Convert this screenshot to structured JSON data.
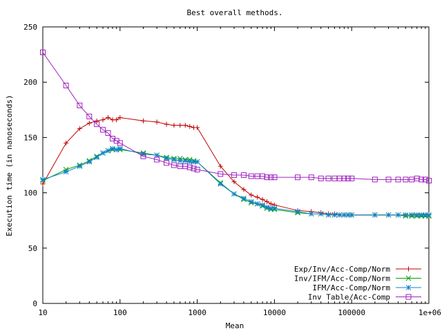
{
  "chart_data": {
    "type": "line",
    "title": "Best overall methods.",
    "xlabel": "Mean",
    "ylabel": "Execution time (in nanoseconds)",
    "xscale": "log",
    "xlim": [
      10,
      1000000
    ],
    "ylim": [
      0,
      250
    ],
    "x_ticks": [
      {
        "value": 10,
        "label": "10"
      },
      {
        "value": 100,
        "label": "100"
      },
      {
        "value": 1000,
        "label": "1000"
      },
      {
        "value": 10000,
        "label": "10000"
      },
      {
        "value": 100000,
        "label": "100000"
      },
      {
        "value": 1000000,
        "label": "1e+06"
      }
    ],
    "y_ticks": [
      {
        "value": 0,
        "label": "0"
      },
      {
        "value": 50,
        "label": "50"
      },
      {
        "value": 100,
        "label": "100"
      },
      {
        "value": 150,
        "label": "150"
      },
      {
        "value": 200,
        "label": "200"
      },
      {
        "value": 250,
        "label": "250"
      }
    ],
    "grid": false,
    "legend_position": "bottom-right",
    "series": [
      {
        "name": "Exp/Inv/Acc-Comp/Norm",
        "color": "#c00000",
        "marker": "plus",
        "points": [
          [
            10,
            108
          ],
          [
            20,
            145
          ],
          [
            30,
            158
          ],
          [
            40,
            163
          ],
          [
            50,
            165
          ],
          [
            60,
            166
          ],
          [
            70,
            168
          ],
          [
            80,
            166
          ],
          [
            90,
            166
          ],
          [
            100,
            168
          ],
          [
            200,
            165
          ],
          [
            300,
            164
          ],
          [
            400,
            162
          ],
          [
            500,
            161
          ],
          [
            600,
            161
          ],
          [
            700,
            161
          ],
          [
            800,
            160
          ],
          [
            900,
            159
          ],
          [
            1000,
            159
          ],
          [
            2000,
            124
          ],
          [
            3000,
            110
          ],
          [
            4000,
            103
          ],
          [
            5000,
            98
          ],
          [
            6000,
            96
          ],
          [
            7000,
            94
          ],
          [
            8000,
            92
          ],
          [
            9000,
            90
          ],
          [
            10000,
            89
          ],
          [
            20000,
            84
          ],
          [
            30000,
            83
          ],
          [
            40000,
            82
          ],
          [
            50000,
            81
          ],
          [
            60000,
            81
          ],
          [
            70000,
            80
          ],
          [
            80000,
            80
          ],
          [
            90000,
            80
          ],
          [
            100000,
            80
          ],
          [
            200000,
            80
          ],
          [
            300000,
            80
          ],
          [
            400000,
            80
          ],
          [
            500000,
            80
          ],
          [
            600000,
            80
          ],
          [
            700000,
            80
          ],
          [
            800000,
            80
          ],
          [
            900000,
            80
          ],
          [
            1000000,
            80
          ]
        ]
      },
      {
        "name": "Inv/IFM/Acc-Comp/Norm",
        "color": "#00a000",
        "marker": "cross",
        "points": [
          [
            10,
            111
          ],
          [
            20,
            121
          ],
          [
            30,
            125
          ],
          [
            40,
            129
          ],
          [
            50,
            133
          ],
          [
            60,
            136
          ],
          [
            70,
            138
          ],
          [
            80,
            139
          ],
          [
            90,
            139
          ],
          [
            100,
            139
          ],
          [
            200,
            136
          ],
          [
            300,
            134
          ],
          [
            400,
            132
          ],
          [
            500,
            131
          ],
          [
            600,
            131
          ],
          [
            700,
            130
          ],
          [
            800,
            130
          ],
          [
            900,
            129
          ],
          [
            1000,
            128
          ],
          [
            2000,
            109
          ],
          [
            3000,
            99
          ],
          [
            4000,
            94
          ],
          [
            5000,
            91
          ],
          [
            6000,
            90
          ],
          [
            7000,
            88
          ],
          [
            8000,
            86
          ],
          [
            9000,
            85
          ],
          [
            10000,
            85
          ],
          [
            20000,
            82
          ],
          [
            30000,
            81
          ],
          [
            40000,
            81
          ],
          [
            50000,
            80
          ],
          [
            60000,
            80
          ],
          [
            70000,
            80
          ],
          [
            80000,
            80
          ],
          [
            90000,
            80
          ],
          [
            100000,
            80
          ],
          [
            200000,
            80
          ],
          [
            300000,
            80
          ],
          [
            400000,
            80
          ],
          [
            500000,
            79
          ],
          [
            600000,
            79
          ],
          [
            700000,
            79
          ],
          [
            800000,
            79
          ],
          [
            900000,
            79
          ],
          [
            1000000,
            79
          ]
        ]
      },
      {
        "name": "IFM/Acc-Comp/Norm",
        "color": "#1080d0",
        "marker": "star",
        "points": [
          [
            10,
            112
          ],
          [
            20,
            119
          ],
          [
            30,
            124
          ],
          [
            40,
            128
          ],
          [
            50,
            132
          ],
          [
            60,
            136
          ],
          [
            70,
            138
          ],
          [
            80,
            140
          ],
          [
            90,
            139
          ],
          [
            100,
            140
          ],
          [
            200,
            135
          ],
          [
            300,
            134
          ],
          [
            400,
            131
          ],
          [
            500,
            130
          ],
          [
            600,
            129
          ],
          [
            700,
            129
          ],
          [
            800,
            128
          ],
          [
            900,
            128
          ],
          [
            1000,
            128
          ],
          [
            2000,
            108
          ],
          [
            3000,
            99
          ],
          [
            4000,
            95
          ],
          [
            5000,
            92
          ],
          [
            6000,
            90
          ],
          [
            7000,
            89
          ],
          [
            8000,
            87
          ],
          [
            9000,
            86
          ],
          [
            10000,
            86
          ],
          [
            20000,
            83
          ],
          [
            30000,
            81
          ],
          [
            40000,
            81
          ],
          [
            50000,
            80
          ],
          [
            60000,
            80
          ],
          [
            70000,
            80
          ],
          [
            80000,
            80
          ],
          [
            90000,
            80
          ],
          [
            100000,
            80
          ],
          [
            200000,
            80
          ],
          [
            300000,
            80
          ],
          [
            400000,
            80
          ],
          [
            500000,
            80
          ],
          [
            600000,
            80
          ],
          [
            700000,
            80
          ],
          [
            800000,
            80
          ],
          [
            900000,
            80
          ],
          [
            1000000,
            80
          ]
        ]
      },
      {
        "name": "Inv Table/Acc-Comp",
        "color": "#a020c0",
        "marker": "square",
        "points": [
          [
            10,
            227
          ],
          [
            20,
            197
          ],
          [
            30,
            179
          ],
          [
            40,
            169
          ],
          [
            50,
            162
          ],
          [
            60,
            157
          ],
          [
            70,
            154
          ],
          [
            80,
            149
          ],
          [
            90,
            147
          ],
          [
            100,
            145
          ],
          [
            200,
            133
          ],
          [
            300,
            130
          ],
          [
            400,
            127
          ],
          [
            500,
            125
          ],
          [
            600,
            124
          ],
          [
            700,
            124
          ],
          [
            800,
            123
          ],
          [
            900,
            122
          ],
          [
            1000,
            121
          ],
          [
            2000,
            117
          ],
          [
            3000,
            116
          ],
          [
            4000,
            116
          ],
          [
            5000,
            115
          ],
          [
            6000,
            115
          ],
          [
            7000,
            115
          ],
          [
            8000,
            114
          ],
          [
            9000,
            114
          ],
          [
            10000,
            114
          ],
          [
            20000,
            114
          ],
          [
            30000,
            114
          ],
          [
            40000,
            113
          ],
          [
            50000,
            113
          ],
          [
            60000,
            113
          ],
          [
            70000,
            113
          ],
          [
            80000,
            113
          ],
          [
            90000,
            113
          ],
          [
            100000,
            113
          ],
          [
            200000,
            112
          ],
          [
            300000,
            112
          ],
          [
            400000,
            112
          ],
          [
            500000,
            112
          ],
          [
            600000,
            112
          ],
          [
            700000,
            113
          ],
          [
            800000,
            112
          ],
          [
            900000,
            112
          ],
          [
            1000000,
            111
          ]
        ]
      }
    ]
  }
}
